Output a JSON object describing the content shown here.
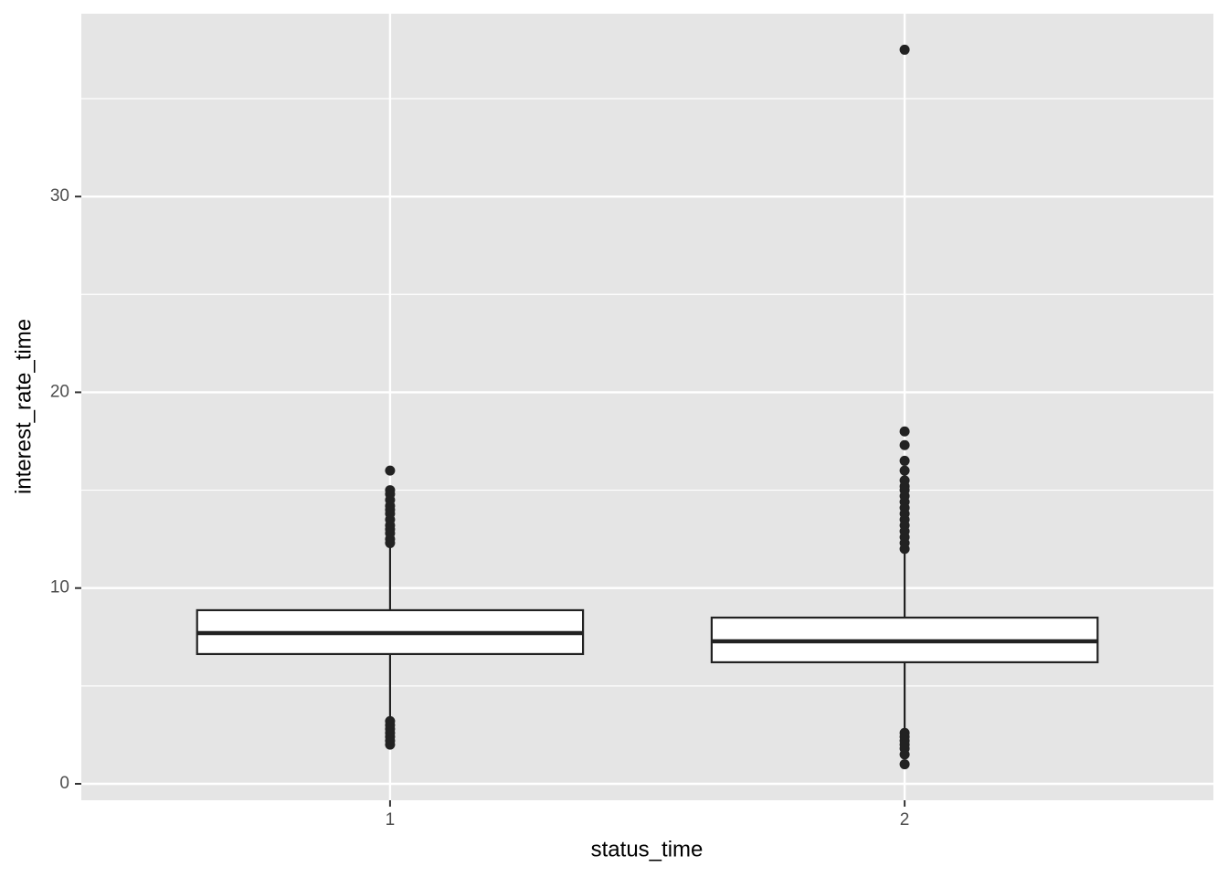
{
  "chart_data": {
    "type": "box",
    "x_label": "status_time",
    "y_label": "interest_rate_time",
    "categories": [
      "1",
      "2"
    ],
    "boxes": [
      {
        "whisker_low": 3.3,
        "q1": 6.63,
        "median": 7.7,
        "q3": 8.87,
        "whisker_high": 12.2,
        "outliers": [
          16.0,
          15.0,
          14.8,
          14.5,
          14.2,
          14.0,
          13.8,
          13.5,
          13.2,
          13.0,
          12.8,
          12.5,
          12.3,
          3.2,
          3.0,
          2.8,
          2.6,
          2.4,
          2.2,
          2.0
        ]
      },
      {
        "whisker_low": 2.8,
        "q1": 6.21,
        "median": 7.28,
        "q3": 8.49,
        "whisker_high": 11.9,
        "outliers": [
          37.5,
          18.0,
          17.3,
          16.5,
          16.0,
          15.5,
          15.2,
          15.0,
          14.7,
          14.4,
          14.1,
          13.8,
          13.5,
          13.2,
          12.9,
          12.6,
          12.3,
          12.0,
          2.6,
          2.4,
          2.2,
          2.0,
          1.8,
          1.5,
          1.0
        ]
      }
    ],
    "color": "#222222",
    "ylim": [
      -0.84,
      39.34
    ],
    "yticks": [
      0,
      10,
      20,
      30
    ],
    "minor_grid": [
      5,
      15,
      25,
      35
    ],
    "grid": true
  }
}
